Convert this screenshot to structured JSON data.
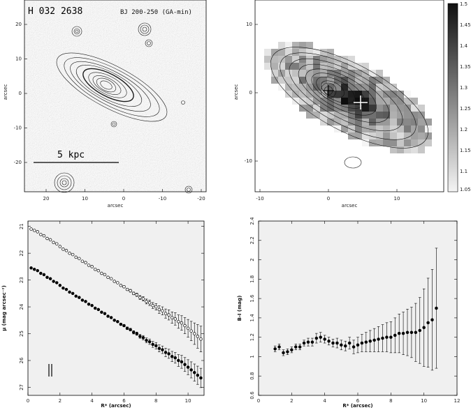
{
  "chart_data": [
    {
      "id": "top-left",
      "type": "image",
      "title": "H 032 2638",
      "filter_label": "BJ 200-250 (GA-min)",
      "scalebar_label": "5 kpc",
      "xlabel": "arcsec",
      "ylabel": "arcsec",
      "xticks": [
        "20",
        "10",
        "0",
        "-10",
        "-20"
      ],
      "yticks": [
        "20",
        "10",
        "0",
        "-10",
        "-20"
      ],
      "colors": {
        "background": "#c9c9c9",
        "contour": "#202020"
      }
    },
    {
      "id": "top-right",
      "type": "heatmap",
      "xlabel": "arcsec",
      "ylabel": "arcsec",
      "xticks": [
        "-10",
        "0",
        "10"
      ],
      "yticks": [
        "10",
        "0",
        "-10"
      ],
      "colorbar": {
        "range": [
          1.05,
          1.5
        ],
        "ticks": [
          "1.5",
          "1.45",
          "1.4",
          "1.35",
          "1.3",
          "1.25",
          "1.2",
          "1.15",
          "1.1",
          "1.05"
        ]
      }
    },
    {
      "id": "bottom-left",
      "type": "scatter",
      "xlabel": "R* (arcsec)",
      "ylabel": "μ (mag arcsec⁻²)",
      "xlim": [
        0,
        11
      ],
      "ylim": [
        27.3,
        20.8
      ],
      "xticks": [
        "0",
        "2",
        "4",
        "6",
        "8",
        "10"
      ],
      "yticks": [
        "21",
        "22",
        "23",
        "24",
        "25",
        "26",
        "27"
      ],
      "series": [
        {
          "marker": "open-circle",
          "x": [
            0.2,
            0.4,
            0.6,
            0.8,
            1.0,
            1.2,
            1.4,
            1.6,
            1.8,
            2.0,
            2.2,
            2.4,
            2.6,
            2.8,
            3.0,
            3.2,
            3.4,
            3.6,
            3.8,
            4.0,
            4.2,
            4.4,
            4.6,
            4.8,
            5.0,
            5.2,
            5.4,
            5.6,
            5.8,
            6.0,
            6.2,
            6.4,
            6.6,
            6.8,
            7.0,
            7.2,
            7.4,
            7.6,
            7.8,
            8.0,
            8.2,
            8.4,
            8.6,
            8.8,
            9.0,
            9.2,
            9.4,
            9.6,
            9.8,
            10.0,
            10.2,
            10.4,
            10.6,
            10.8
          ],
          "y": [
            21.1,
            21.15,
            21.2,
            21.3,
            21.35,
            21.45,
            21.5,
            21.6,
            21.65,
            21.75,
            21.85,
            21.9,
            22.0,
            22.05,
            22.15,
            22.2,
            22.3,
            22.35,
            22.45,
            22.5,
            22.6,
            22.65,
            22.75,
            22.8,
            22.9,
            22.95,
            23.05,
            23.1,
            23.2,
            23.25,
            23.35,
            23.4,
            23.5,
            23.55,
            23.65,
            23.7,
            23.8,
            23.85,
            23.95,
            24.0,
            24.1,
            24.15,
            24.25,
            24.3,
            24.4,
            24.45,
            24.55,
            24.6,
            24.7,
            24.8,
            24.9,
            25.0,
            25.1,
            25.2
          ],
          "yerr": [
            0.01,
            0.01,
            0.01,
            0.01,
            0.01,
            0.01,
            0.01,
            0.01,
            0.01,
            0.01,
            0.01,
            0.01,
            0.01,
            0.01,
            0.01,
            0.01,
            0.01,
            0.01,
            0.01,
            0.01,
            0.01,
            0.01,
            0.02,
            0.02,
            0.02,
            0.02,
            0.03,
            0.03,
            0.03,
            0.04,
            0.04,
            0.05,
            0.05,
            0.06,
            0.07,
            0.08,
            0.09,
            0.1,
            0.11,
            0.12,
            0.14,
            0.15,
            0.17,
            0.19,
            0.21,
            0.23,
            0.25,
            0.27,
            0.3,
            0.33,
            0.36,
            0.4,
            0.44,
            0.48
          ]
        },
        {
          "marker": "filled-circle",
          "x": [
            0.2,
            0.4,
            0.6,
            0.8,
            1.0,
            1.2,
            1.4,
            1.6,
            1.8,
            2.0,
            2.2,
            2.4,
            2.6,
            2.8,
            3.0,
            3.2,
            3.4,
            3.6,
            3.8,
            4.0,
            4.2,
            4.4,
            4.6,
            4.8,
            5.0,
            5.2,
            5.4,
            5.6,
            5.8,
            6.0,
            6.2,
            6.4,
            6.6,
            6.8,
            7.0,
            7.2,
            7.4,
            7.6,
            7.8,
            8.0,
            8.2,
            8.4,
            8.6,
            8.8,
            9.0,
            9.2,
            9.4,
            9.6,
            9.8,
            10.0,
            10.2,
            10.4,
            10.6,
            10.8
          ],
          "y": [
            22.55,
            22.6,
            22.65,
            22.75,
            22.8,
            22.9,
            22.95,
            23.05,
            23.1,
            23.2,
            23.3,
            23.35,
            23.45,
            23.5,
            23.6,
            23.65,
            23.75,
            23.8,
            23.9,
            23.95,
            24.05,
            24.1,
            24.2,
            24.25,
            24.35,
            24.4,
            24.5,
            24.55,
            24.65,
            24.7,
            24.8,
            24.85,
            24.95,
            25.0,
            25.1,
            25.15,
            25.25,
            25.3,
            25.4,
            25.45,
            25.55,
            25.6,
            25.7,
            25.75,
            25.85,
            25.9,
            26.0,
            26.05,
            26.15,
            26.25,
            26.35,
            26.45,
            26.55,
            26.65
          ],
          "yerr": [
            0.01,
            0.01,
            0.01,
            0.01,
            0.01,
            0.01,
            0.01,
            0.01,
            0.01,
            0.01,
            0.01,
            0.01,
            0.01,
            0.01,
            0.01,
            0.01,
            0.01,
            0.01,
            0.01,
            0.01,
            0.01,
            0.02,
            0.02,
            0.02,
            0.02,
            0.03,
            0.03,
            0.03,
            0.04,
            0.04,
            0.05,
            0.05,
            0.06,
            0.06,
            0.07,
            0.08,
            0.09,
            0.1,
            0.11,
            0.12,
            0.13,
            0.14,
            0.16,
            0.17,
            0.19,
            0.2,
            0.22,
            0.24,
            0.26,
            0.28,
            0.3,
            0.32,
            0.34,
            0.36
          ]
        }
      ]
    },
    {
      "id": "bottom-right",
      "type": "scatter",
      "xlabel": "R* (arcsec)",
      "ylabel": "B-I (mag)",
      "xlim": [
        0,
        12
      ],
      "ylim": [
        0.6,
        2.4
      ],
      "xticks": [
        "0",
        "2",
        "4",
        "6",
        "8",
        "10",
        "12"
      ],
      "yticks": [
        "0.6",
        "0.8",
        "1",
        "1.2",
        "1.4",
        "1.6",
        "1.8",
        "2",
        "2.2",
        "2.4"
      ],
      "series": [
        {
          "marker": "filled-circle",
          "x": [
            1.0,
            1.25,
            1.5,
            1.75,
            2.0,
            2.25,
            2.5,
            2.75,
            3.0,
            3.25,
            3.5,
            3.75,
            4.0,
            4.25,
            4.5,
            4.75,
            5.0,
            5.25,
            5.5,
            5.75,
            6.0,
            6.25,
            6.5,
            6.75,
            7.0,
            7.25,
            7.5,
            7.75,
            8.0,
            8.25,
            8.5,
            8.75,
            9.0,
            9.25,
            9.5,
            9.75,
            10.0,
            10.25,
            10.5,
            10.75
          ],
          "y": [
            1.08,
            1.1,
            1.04,
            1.05,
            1.07,
            1.1,
            1.1,
            1.14,
            1.15,
            1.15,
            1.19,
            1.2,
            1.18,
            1.16,
            1.14,
            1.14,
            1.12,
            1.11,
            1.14,
            1.1,
            1.12,
            1.14,
            1.15,
            1.16,
            1.17,
            1.18,
            1.19,
            1.2,
            1.2,
            1.22,
            1.24,
            1.24,
            1.25,
            1.25,
            1.25,
            1.27,
            1.3,
            1.35,
            1.38,
            1.5
          ],
          "yerr": [
            0.03,
            0.03,
            0.03,
            0.03,
            0.03,
            0.03,
            0.03,
            0.03,
            0.04,
            0.04,
            0.05,
            0.05,
            0.04,
            0.04,
            0.04,
            0.05,
            0.05,
            0.05,
            0.06,
            0.07,
            0.08,
            0.09,
            0.1,
            0.11,
            0.12,
            0.13,
            0.14,
            0.15,
            0.16,
            0.18,
            0.2,
            0.22,
            0.24,
            0.26,
            0.3,
            0.34,
            0.4,
            0.46,
            0.52,
            0.62
          ]
        }
      ]
    }
  ]
}
